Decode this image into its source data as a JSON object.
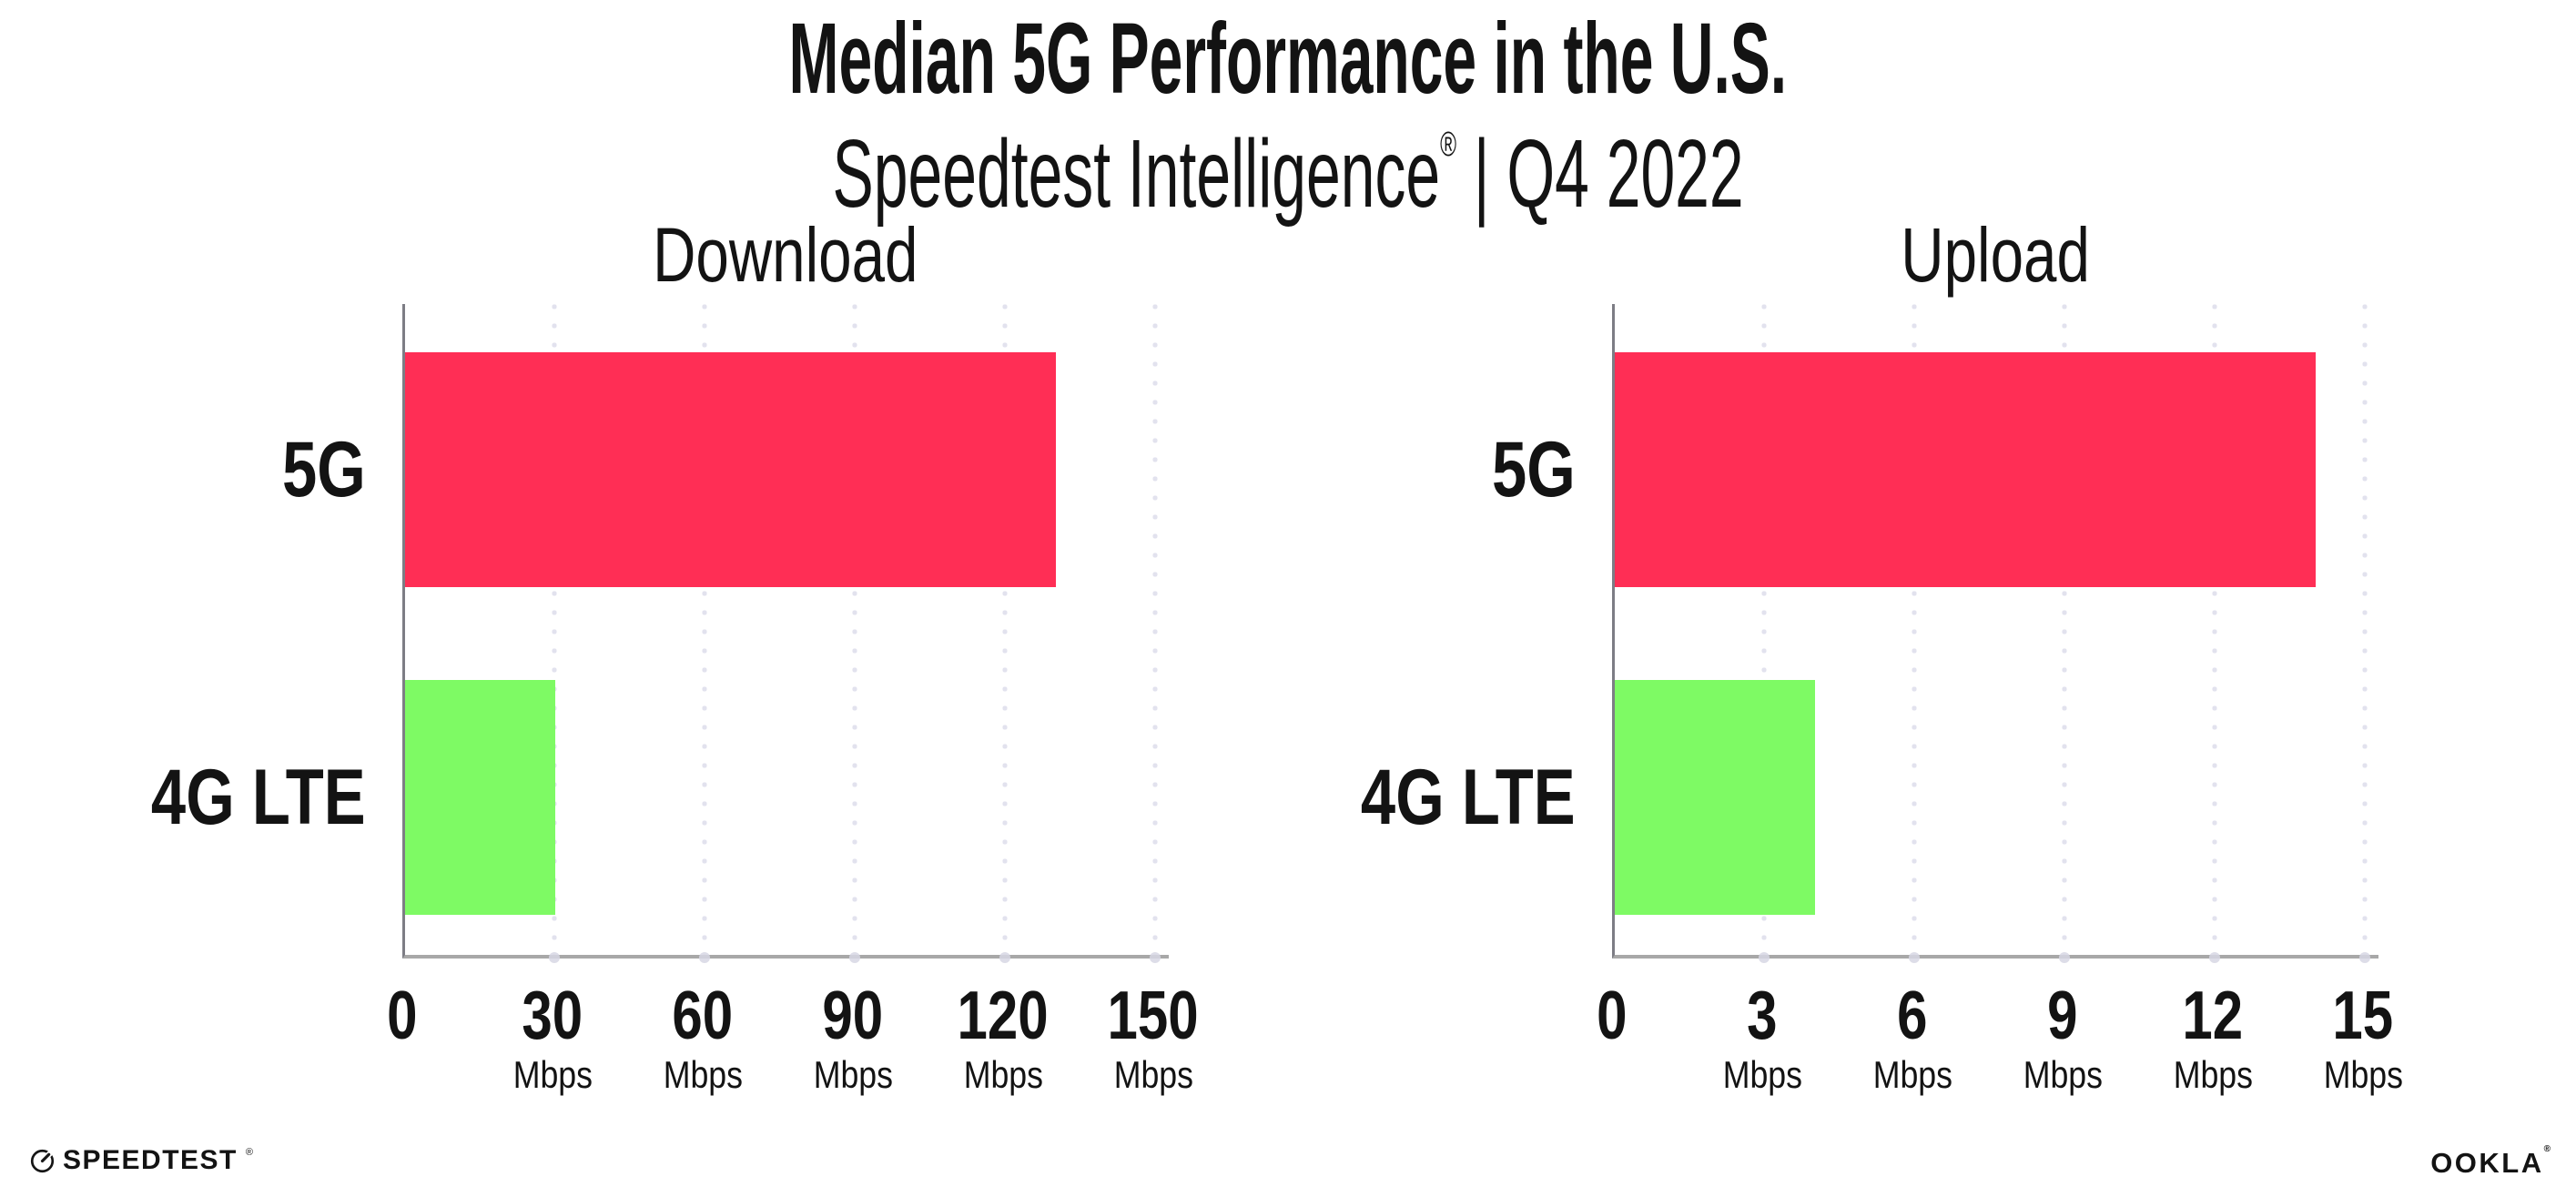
{
  "header": {
    "title": "Median 5G Performance in the U.S.",
    "subtitle_brand": "Speedtest Intelligence",
    "subtitle_reg": "®",
    "subtitle_sep": "|",
    "subtitle_period": "Q4 2022"
  },
  "chart_data": [
    {
      "type": "bar",
      "orientation": "horizontal",
      "title": "Download",
      "categories": [
        "5G",
        "4G LTE"
      ],
      "values": [
        130,
        30
      ],
      "unit": "Mbps",
      "xlim": [
        0,
        150
      ],
      "xticks": [
        0,
        30,
        60,
        90,
        120,
        150
      ],
      "grid": "dotted-vertical",
      "legend": "none",
      "bar_colors": [
        "#FF2E55",
        "#7EFA64"
      ]
    },
    {
      "type": "bar",
      "orientation": "horizontal",
      "title": "Upload",
      "categories": [
        "5G",
        "4G LTE"
      ],
      "values": [
        14,
        4
      ],
      "unit": "Mbps",
      "xlim": [
        0,
        15
      ],
      "xticks": [
        0,
        3,
        6,
        9,
        12,
        15
      ],
      "grid": "dotted-vertical",
      "legend": "none",
      "bar_colors": [
        "#FF2E55",
        "#7EFA64"
      ]
    }
  ],
  "footer": {
    "speedtest_text": "SPEEDTEST",
    "speedtest_reg": "®",
    "speedtest_icon": "gauge-icon",
    "ookla_text": "OOKLA",
    "ookla_reg": "®"
  },
  "colors": {
    "bar_5g": "#FF2E55",
    "bar_4g_lte": "#7EFA64",
    "gridline": "#E2E2EE",
    "axis_x": "#A8A8A8",
    "axis_y": "#7D7D85",
    "text": "#131313",
    "background": "#FFFFFF"
  }
}
